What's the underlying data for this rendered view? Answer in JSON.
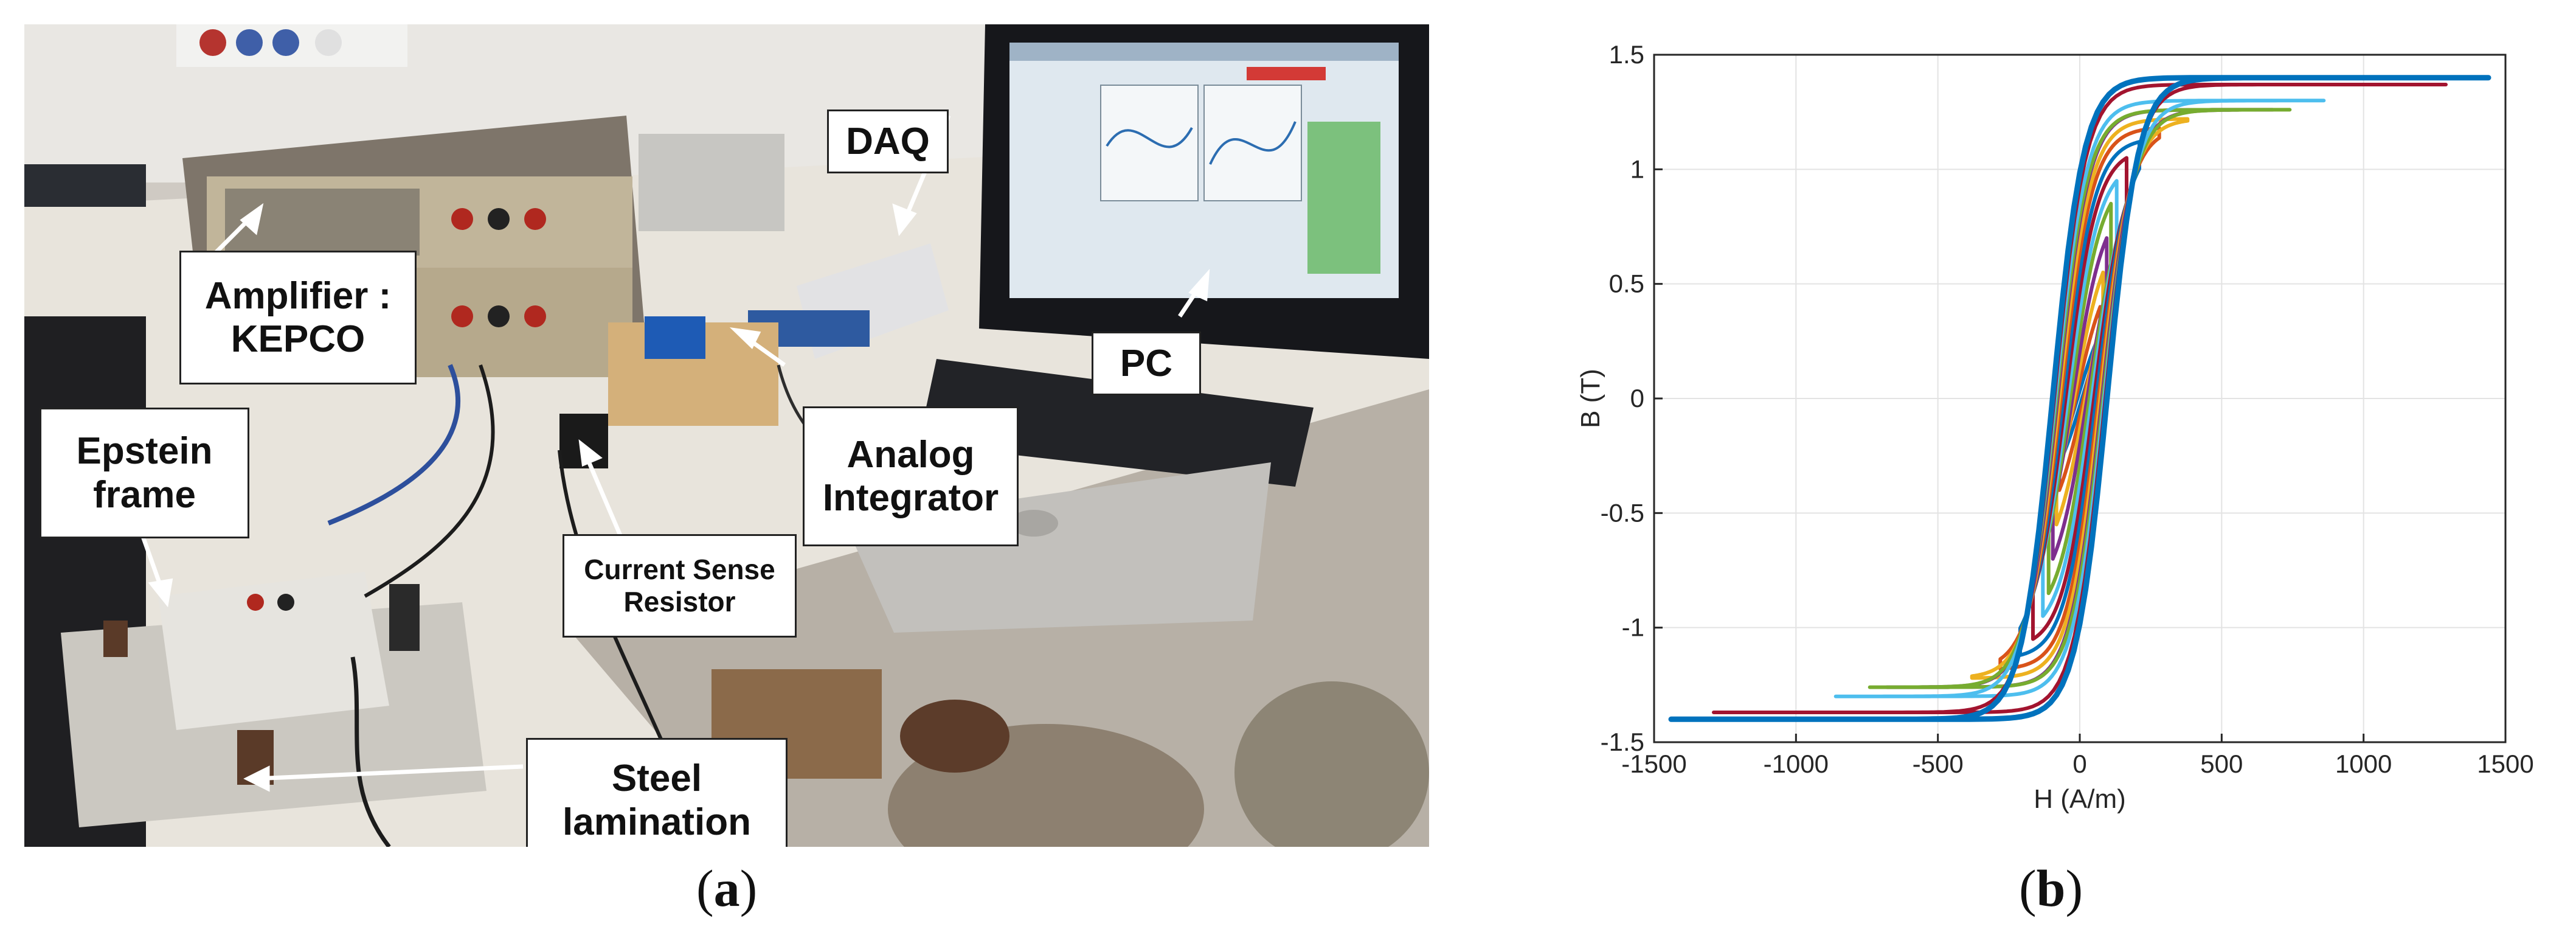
{
  "panel_a": {
    "label_open": "(",
    "label_letter": "a",
    "label_close": ")",
    "callouts": {
      "daq": "DAQ",
      "amplifier": "Amplifier :\nKEPCO",
      "pc": "PC",
      "epstein": "Epstein\nframe",
      "integrator": "Analog\nIntegrator",
      "resistor": "Current Sense\nResistor",
      "steel": "Steel\nlamination"
    }
  },
  "panel_b": {
    "label_open": "(",
    "label_letter": "b",
    "label_close": ")"
  },
  "chart_data": {
    "type": "line",
    "xlabel": "H (A/m)",
    "ylabel": "B (T)",
    "xlim": [
      -1500,
      1500
    ],
    "ylim": [
      -1.5,
      1.5
    ],
    "xticks": [
      -1500,
      -1000,
      -500,
      0,
      500,
      1000,
      1500
    ],
    "yticks": [
      -1.5,
      -1,
      -0.5,
      0,
      0.5,
      1,
      1.5
    ],
    "xtick_labels": [
      "-1500",
      "-1000",
      "-500",
      "0",
      "500",
      "1000",
      "1500"
    ],
    "ytick_labels": [
      "-1.5",
      "-1",
      "-0.5",
      "0",
      "0.5",
      "1",
      "1.5"
    ],
    "grid": true,
    "legend": "none",
    "description_of_series": "nested B-H hysteresis loops",
    "series": [
      {
        "peak_B": 0.25,
        "peak_H": 60,
        "coercive_H": 8,
        "color": "#0072BD"
      },
      {
        "peak_B": 0.4,
        "peak_H": 72,
        "coercive_H": 14,
        "color": "#D95319"
      },
      {
        "peak_B": 0.55,
        "peak_H": 82,
        "coercive_H": 20,
        "color": "#EDB120"
      },
      {
        "peak_B": 0.7,
        "peak_H": 95,
        "coercive_H": 26,
        "color": "#7E2F8E"
      },
      {
        "peak_B": 0.85,
        "peak_H": 110,
        "coercive_H": 34,
        "color": "#77AC30"
      },
      {
        "peak_B": 0.95,
        "peak_H": 130,
        "coercive_H": 42,
        "color": "#4DBEEE"
      },
      {
        "peak_B": 1.05,
        "peak_H": 165,
        "coercive_H": 50,
        "color": "#A2142F"
      },
      {
        "peak_B": 1.12,
        "peak_H": 210,
        "coercive_H": 58,
        "color": "#0072BD"
      },
      {
        "peak_B": 1.18,
        "peak_H": 280,
        "coercive_H": 66,
        "color": "#D95319"
      },
      {
        "peak_B": 1.22,
        "peak_H": 380,
        "coercive_H": 72,
        "color": "#EDB120"
      },
      {
        "peak_B": 1.26,
        "peak_H": 680,
        "coercive_H": 78,
        "color": "#7E2F8E"
      },
      {
        "peak_B": 1.26,
        "peak_H": 740,
        "coercive_H": 82,
        "color": "#77AC30"
      },
      {
        "peak_B": 1.3,
        "peak_H": 860,
        "coercive_H": 86,
        "color": "#4DBEEE"
      },
      {
        "peak_B": 1.37,
        "peak_H": 1290,
        "coercive_H": 90,
        "color": "#A2142F"
      },
      {
        "peak_B": 1.4,
        "peak_H": 1440,
        "coercive_H": 96,
        "color": "#0072BD"
      }
    ]
  }
}
